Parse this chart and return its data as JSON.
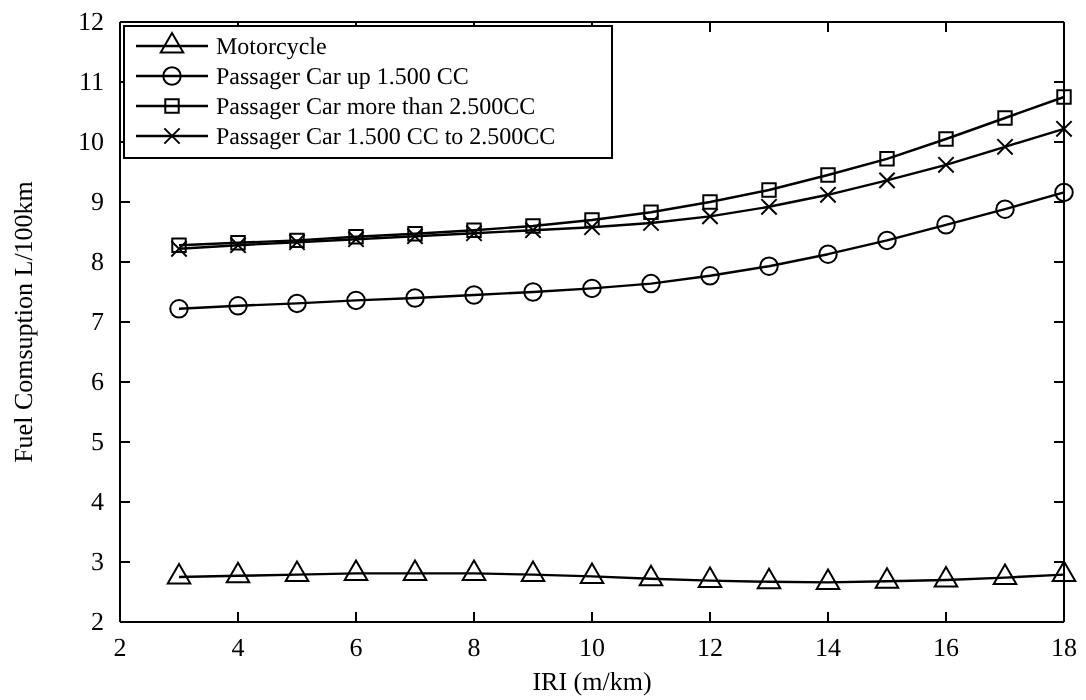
{
  "chart_data": {
    "type": "line",
    "xlabel": "IRI (m/km)",
    "ylabel": "Fuel Comsuption L/100km",
    "x": [
      3,
      4,
      5,
      6,
      7,
      8,
      9,
      10,
      11,
      12,
      13,
      14,
      15,
      16,
      17,
      18
    ],
    "series": [
      {
        "name": "Motorcycle",
        "color": "#000000",
        "marker": "triangle",
        "values": [
          2.75,
          2.77,
          2.79,
          2.81,
          2.81,
          2.81,
          2.79,
          2.76,
          2.72,
          2.69,
          2.67,
          2.66,
          2.68,
          2.7,
          2.74,
          2.79
        ]
      },
      {
        "name": "Passager Car up 1.500 CC",
        "color": "#000000",
        "marker": "circle",
        "values": [
          7.22,
          7.27,
          7.31,
          7.36,
          7.4,
          7.45,
          7.5,
          7.56,
          7.64,
          7.77,
          7.93,
          8.13,
          8.36,
          8.62,
          8.88,
          9.16
        ]
      },
      {
        "name": "Passager Car more than 2.500CC",
        "color": "#000000",
        "marker": "square",
        "values": [
          8.28,
          8.32,
          8.36,
          8.42,
          8.47,
          8.53,
          8.6,
          8.7,
          8.83,
          9.0,
          9.2,
          9.45,
          9.72,
          10.05,
          10.4,
          10.75
        ]
      },
      {
        "name": "Passager Car 1.500 CC to 2.500CC",
        "color": "#000000",
        "marker": "cross",
        "values": [
          8.22,
          8.28,
          8.33,
          8.38,
          8.43,
          8.48,
          8.53,
          8.58,
          8.65,
          8.76,
          8.92,
          9.12,
          9.36,
          9.62,
          9.92,
          10.22
        ]
      }
    ],
    "xlim": [
      2,
      18
    ],
    "xticks": [
      2,
      4,
      6,
      8,
      10,
      12,
      14,
      16,
      18
    ],
    "ylim": [
      2,
      12
    ],
    "yticks": [
      2,
      3,
      4,
      5,
      6,
      7,
      8,
      9,
      10,
      11,
      12
    ],
    "grid": false,
    "legend": "top left",
    "line_style": "solid"
  }
}
